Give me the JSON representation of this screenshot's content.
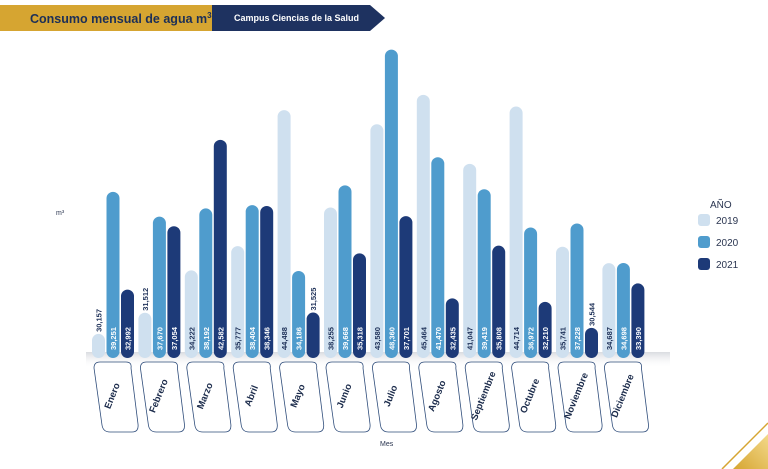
{
  "header": {
    "title_main": "Consumo mensual de agua m",
    "title_sup": "3",
    "subtitle": "Campus Ciencias de la Salud"
  },
  "colors": {
    "gold": "#d6a531",
    "navy": "#1e3260",
    "c2019": "#cfe0ef",
    "c2020": "#4f9ccd",
    "c2021": "#1d3a78"
  },
  "chart_data": {
    "type": "bar",
    "title": "Consumo mensual de agua m3",
    "subtitle": "Campus Ciencias de la Salud",
    "ylabel": "m³",
    "xlabel": "Mes",
    "legend_title": "AÑO",
    "legend_position": "right",
    "ylim": [
      29000,
      50000
    ],
    "categories": [
      "Enero",
      "Febrero",
      "Marzo",
      "Abril",
      "Mayo",
      "Junio",
      "Julio",
      "Agosto",
      "Septiembre",
      "Octubre",
      "Noviembre",
      "Diciembre"
    ],
    "series": [
      {
        "name": "2019",
        "values": [
          30157,
          31512,
          34222,
          35777,
          44488,
          38255,
          43580,
          45464,
          41047,
          44714,
          35741,
          34687
        ],
        "labels": [
          "30,157",
          "31,512",
          "34,222",
          "35,777",
          "44,488",
          "38,255",
          "43,580",
          "45,464",
          "41,047",
          "44,714",
          "35,741",
          "34,687"
        ]
      },
      {
        "name": "2020",
        "values": [
          39251,
          37670,
          38192,
          38404,
          34186,
          39668,
          48360,
          41470,
          39419,
          36972,
          37228,
          34698
        ],
        "labels": [
          "39,251",
          "37,670",
          "38,192",
          "38,404",
          "34,186",
          "39,668",
          "48,360",
          "41,470",
          "39,419",
          "36,972",
          "37,228",
          "34,698"
        ]
      },
      {
        "name": "2021",
        "values": [
          32992,
          37054,
          42582,
          38346,
          31525,
          35318,
          37701,
          32435,
          35808,
          32210,
          30544,
          33390
        ],
        "labels": [
          "32,992",
          "37,054",
          "42,582",
          "38,346",
          "31,525",
          "35,318",
          "37,701",
          "32,435",
          "35,808",
          "32,210",
          "30,544",
          "33,390"
        ]
      }
    ]
  }
}
